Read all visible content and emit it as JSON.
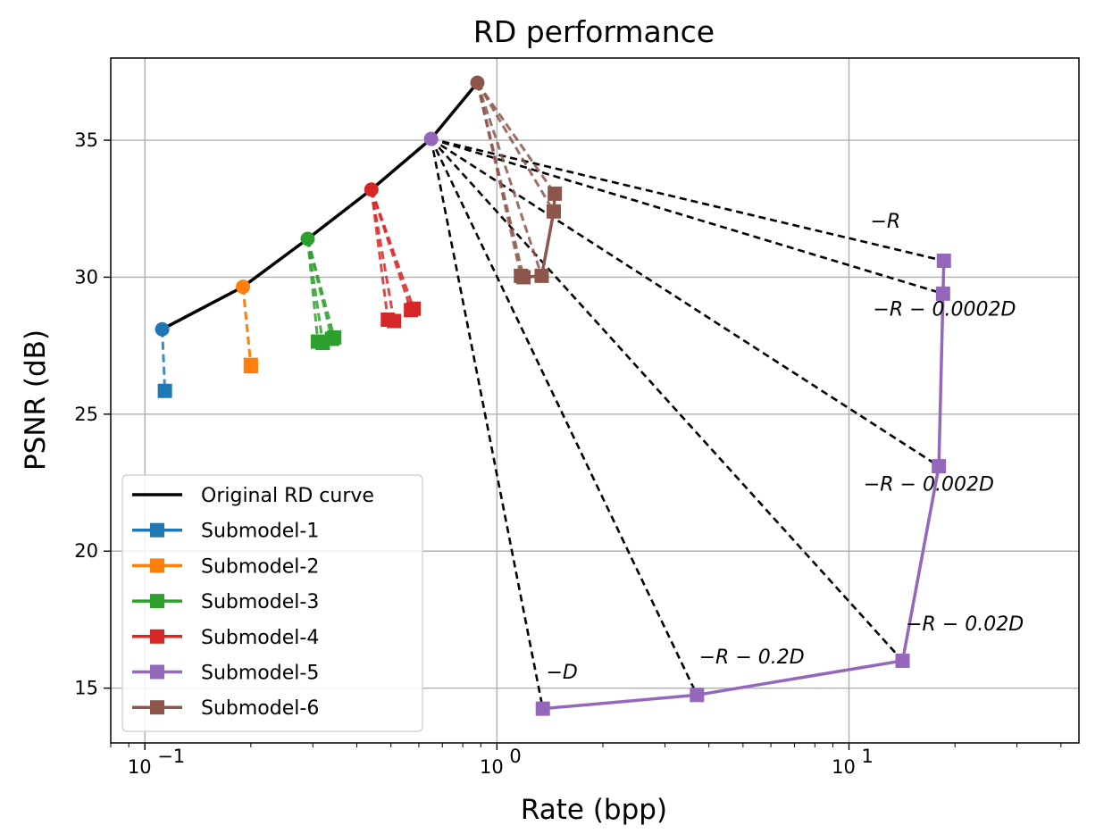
{
  "chart_data": {
    "type": "line",
    "title": "RD performance",
    "xlabel": "Rate (bpp)",
    "ylabel": "PSNR (dB)",
    "xscale": "log",
    "xlim": [
      0.08,
      45
    ],
    "ylim": [
      13,
      38
    ],
    "grid": true,
    "legend_position": "bottom-left",
    "x_ticks": [
      {
        "value": 0.1,
        "base": "10",
        "exp": "−1"
      },
      {
        "value": 1,
        "base": "10",
        "exp": "0"
      },
      {
        "value": 10,
        "base": "10",
        "exp": "1"
      }
    ],
    "y_ticks": [
      15,
      20,
      25,
      30,
      35
    ],
    "original_curve": {
      "name": "Original RD curve",
      "color": "#000000",
      "points": [
        [
          0.112,
          28.1
        ],
        [
          0.19,
          29.65
        ],
        [
          0.29,
          31.4
        ],
        [
          0.44,
          33.2
        ],
        [
          0.65,
          35.05
        ],
        [
          0.88,
          37.1
        ]
      ]
    },
    "series": [
      {
        "name": "Submodel-1",
        "color": "#1f77b4",
        "start": [
          0.112,
          28.1
        ],
        "points": [
          [
            0.114,
            25.85
          ]
        ]
      },
      {
        "name": "Submodel-2",
        "color": "#ff7f0e",
        "start": [
          0.19,
          29.65
        ],
        "points": [
          [
            0.2,
            26.8
          ],
          [
            0.2,
            26.75
          ]
        ]
      },
      {
        "name": "Submodel-3",
        "color": "#2ca02c",
        "start": [
          0.29,
          31.4
        ],
        "points": [
          [
            0.31,
            27.65
          ],
          [
            0.32,
            27.6
          ],
          [
            0.34,
            27.75
          ],
          [
            0.345,
            27.8
          ]
        ]
      },
      {
        "name": "Submodel-4",
        "color": "#d62728",
        "start": [
          0.44,
          33.2
        ],
        "points": [
          [
            0.49,
            28.45
          ],
          [
            0.51,
            28.4
          ],
          [
            0.57,
            28.8
          ],
          [
            0.58,
            28.85
          ]
        ]
      },
      {
        "name": "Submodel-5",
        "color": "#9467bd",
        "start": [
          0.65,
          35.05
        ],
        "points": [
          [
            1.35,
            14.25
          ],
          [
            3.7,
            14.75
          ],
          [
            14.2,
            16.0
          ],
          [
            18.0,
            23.1
          ],
          [
            18.5,
            29.4
          ],
          [
            18.6,
            30.6
          ]
        ]
      },
      {
        "name": "Submodel-6",
        "color": "#8c564b",
        "start": [
          0.88,
          37.1
        ],
        "points": [
          [
            1.17,
            30.05
          ],
          [
            1.19,
            30.0
          ],
          [
            1.34,
            30.05
          ],
          [
            1.45,
            32.4
          ],
          [
            1.46,
            33.05
          ]
        ]
      }
    ],
    "annotations": [
      {
        "text": "−D",
        "x": 1.38,
        "y": 15.35
      },
      {
        "text": "−R − 0.2D",
        "x": 3.75,
        "y": 15.9
      },
      {
        "text": "−R − 0.02D",
        "x": 14.5,
        "y": 17.1
      },
      {
        "text": "−R − 0.002D",
        "x": 11.0,
        "y": 22.2
      },
      {
        "text": "−R − 0.0002D",
        "x": 11.7,
        "y": 28.6
      },
      {
        "text": "−R",
        "x": 11.5,
        "y": 31.8
      }
    ]
  }
}
